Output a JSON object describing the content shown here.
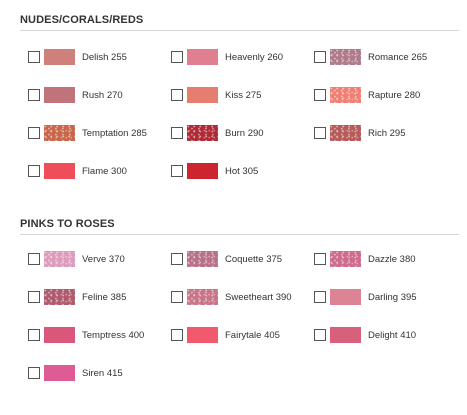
{
  "sections": [
    {
      "title": "NUDES/CORALS/REDS",
      "items": [
        {
          "label": "Delish 255",
          "color": "#d0807a",
          "shimmer": false
        },
        {
          "label": "Heavenly 260",
          "color": "#e07f8f",
          "shimmer": false
        },
        {
          "label": "Romance 265",
          "color": "#b07a8a",
          "shimmer": true
        },
        {
          "label": "Rush 270",
          "color": "#c07378",
          "shimmer": false
        },
        {
          "label": "Kiss 275",
          "color": "#e57e6e",
          "shimmer": false
        },
        {
          "label": "Rapture 280",
          "color": "#ef8072",
          "shimmer": true
        },
        {
          "label": "Temptation 285",
          "color": "#c8674a",
          "shimmer": true
        },
        {
          "label": "Burn 290",
          "color": "#b02a35",
          "shimmer": true
        },
        {
          "label": "Rich 295",
          "color": "#b65a5a",
          "shimmer": true
        },
        {
          "label": "Flame 300",
          "color": "#ef4d5a",
          "shimmer": false
        },
        {
          "label": "Hot 305",
          "color": "#cc2530",
          "shimmer": false
        }
      ]
    },
    {
      "title": "PINKS TO ROSES",
      "items": [
        {
          "label": "Verve 370",
          "color": "#dd9cbd",
          "shimmer": true
        },
        {
          "label": "Coquette 375",
          "color": "#b9708a",
          "shimmer": true
        },
        {
          "label": "Dazzle 380",
          "color": "#cf6b8d",
          "shimmer": true
        },
        {
          "label": "Feline 385",
          "color": "#b05a6d",
          "shimmer": true
        },
        {
          "label": "Sweetheart 390",
          "color": "#c87588",
          "shimmer": true
        },
        {
          "label": "Darling 395",
          "color": "#dc8493",
          "shimmer": false
        },
        {
          "label": "Temptress 400",
          "color": "#d9577a",
          "shimmer": false
        },
        {
          "label": "Fairytale 405",
          "color": "#f05a6c",
          "shimmer": false
        },
        {
          "label": "Delight 410",
          "color": "#d7607b",
          "shimmer": false
        },
        {
          "label": "Siren 415",
          "color": "#de5b93",
          "shimmer": false
        }
      ]
    }
  ]
}
